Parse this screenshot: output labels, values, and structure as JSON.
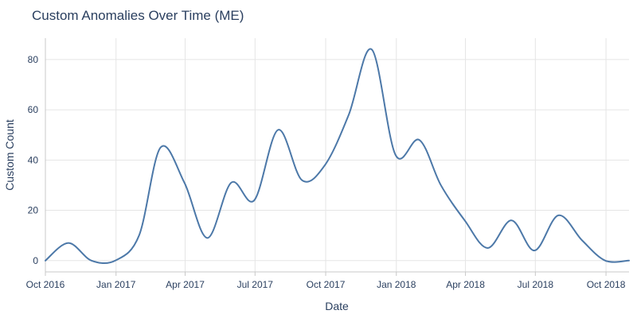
{
  "chart_data": {
    "type": "line",
    "title": "Custom Anomalies Over Time (ME)",
    "xlabel": "Date",
    "ylabel": "Custom Count",
    "x_type": "date",
    "xlim": [
      "2016-10-01",
      "2018-10-31"
    ],
    "ylim": [
      -4.5,
      88.5
    ],
    "x_ticks": [
      {
        "date": "2016-10-01",
        "label": "Oct 2016"
      },
      {
        "date": "2017-01-01",
        "label": "Jan 2017"
      },
      {
        "date": "2017-04-01",
        "label": "Apr 2017"
      },
      {
        "date": "2017-07-01",
        "label": "Jul 2017"
      },
      {
        "date": "2017-10-01",
        "label": "Oct 2017"
      },
      {
        "date": "2018-01-01",
        "label": "Jan 2018"
      },
      {
        "date": "2018-04-01",
        "label": "Apr 2018"
      },
      {
        "date": "2018-07-01",
        "label": "Jul 2018"
      },
      {
        "date": "2018-10-01",
        "label": "Oct 2018"
      }
    ],
    "y_ticks": [
      0,
      20,
      40,
      60,
      80
    ],
    "grid": true,
    "line_color": "#4c78a8",
    "series": [
      {
        "x": [
          "2016-10-01",
          "2016-10-31",
          "2016-11-30",
          "2016-12-31",
          "2017-01-31",
          "2017-02-28",
          "2017-03-31",
          "2017-04-30",
          "2017-05-31",
          "2017-06-30",
          "2017-07-31",
          "2017-08-31",
          "2017-09-30",
          "2017-10-31",
          "2017-11-30",
          "2017-12-31",
          "2018-01-31",
          "2018-02-28",
          "2018-03-31",
          "2018-04-30",
          "2018-05-31",
          "2018-06-30",
          "2018-07-31",
          "2018-08-31",
          "2018-09-30",
          "2018-10-31"
        ],
        "y": [
          0,
          7,
          0,
          0,
          10,
          45,
          31,
          9,
          31,
          24,
          52,
          32,
          38,
          58,
          84,
          42,
          48,
          30,
          16,
          5,
          16,
          4,
          18,
          8,
          0,
          0
        ]
      }
    ]
  }
}
